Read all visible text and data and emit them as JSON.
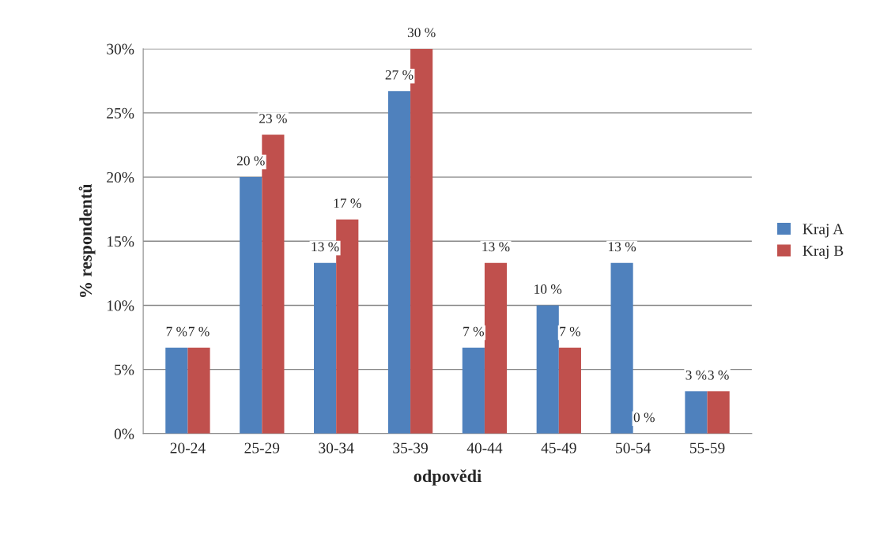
{
  "chart_data": {
    "type": "bar",
    "xlabel": "odpovědi",
    "ylabel": "% respondentů",
    "categories": [
      "20-24",
      "25-29",
      "30-34",
      "35-39",
      "40-44",
      "45-49",
      "50-54",
      "55-59"
    ],
    "series": [
      {
        "name": "Kraj A",
        "color": "#4f81bd",
        "values": [
          6.7,
          20,
          13.3,
          26.7,
          6.7,
          10,
          13.3,
          3.3
        ],
        "value_labels": [
          "7 %",
          "20 %",
          "13 %",
          "27 %",
          "7 %",
          "10 %",
          "13 %",
          "3 %"
        ]
      },
      {
        "name": "Kraj B",
        "color": "#c0504d",
        "values": [
          6.7,
          23.3,
          16.7,
          30,
          13.3,
          6.7,
          0,
          3.3
        ],
        "value_labels": [
          "7 %",
          "23 %",
          "17 %",
          "30 %",
          "13 %",
          "7 %",
          "0 %",
          "3 %"
        ]
      }
    ],
    "ylim": [
      0,
      30
    ],
    "yticks": [
      {
        "value": 0,
        "label": "0%"
      },
      {
        "value": 5,
        "label": "5%"
      },
      {
        "value": 10,
        "label": "10%"
      },
      {
        "value": 15,
        "label": "15%"
      },
      {
        "value": 20,
        "label": "20%"
      },
      {
        "value": 25,
        "label": "25%"
      },
      {
        "value": 30,
        "label": "30%"
      }
    ],
    "grid": "y",
    "legend": "right"
  }
}
